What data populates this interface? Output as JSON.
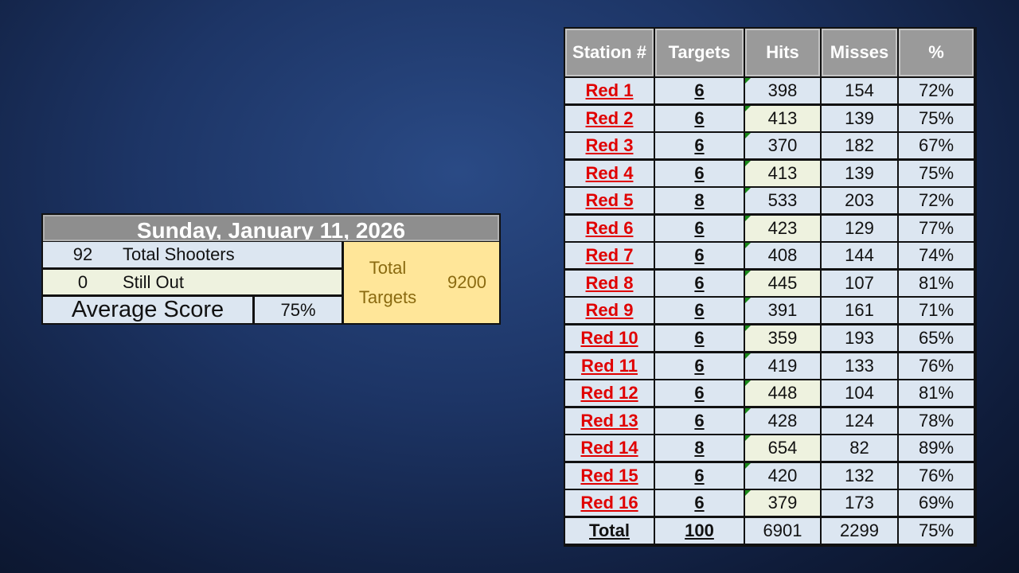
{
  "summary": {
    "date": "Sunday, January 11, 2026",
    "total_shooters": "92",
    "total_shooters_label": "Total Shooters",
    "still_out": "0",
    "still_out_label": "Still Out",
    "average_score_label": "Average Score",
    "average_score": "75%",
    "total_targets_label_1": "Total",
    "total_targets_label_2": "Targets",
    "total_targets": "9200"
  },
  "table": {
    "headers": [
      "Station #",
      "Targets",
      "Hits",
      "Misses",
      "%"
    ],
    "rows": [
      [
        "Red 1",
        "6",
        "398",
        "154",
        "72%"
      ],
      [
        "Red 2",
        "6",
        "413",
        "139",
        "75%"
      ],
      [
        "Red 3",
        "6",
        "370",
        "182",
        "67%"
      ],
      [
        "Red 4",
        "6",
        "413",
        "139",
        "75%"
      ],
      [
        "Red 5",
        "8",
        "533",
        "203",
        "72%"
      ],
      [
        "Red 6",
        "6",
        "423",
        "129",
        "77%"
      ],
      [
        "Red 7",
        "6",
        "408",
        "144",
        "74%"
      ],
      [
        "Red 8",
        "6",
        "445",
        "107",
        "81%"
      ],
      [
        "Red 9",
        "6",
        "391",
        "161",
        "71%"
      ],
      [
        "Red 10",
        "6",
        "359",
        "193",
        "65%"
      ],
      [
        "Red 11",
        "6",
        "419",
        "133",
        "76%"
      ],
      [
        "Red 12",
        "6",
        "448",
        "104",
        "81%"
      ],
      [
        "Red 13",
        "6",
        "428",
        "124",
        "78%"
      ],
      [
        "Red 14",
        "8",
        "654",
        "82",
        "89%"
      ],
      [
        "Red 15",
        "6",
        "420",
        "132",
        "76%"
      ],
      [
        "Red 16",
        "6",
        "379",
        "173",
        "69%"
      ]
    ],
    "total": [
      "Total",
      "100",
      "6901",
      "2299",
      "75%"
    ]
  },
  "colors": {
    "station_link": "#e00000",
    "header_bg": "#9a9a9a",
    "row_bg": "#dce6f1",
    "alt_cell_bg": "#eef2df",
    "targets_panel_bg": "#ffe699",
    "targets_text": "#8a6a10"
  }
}
